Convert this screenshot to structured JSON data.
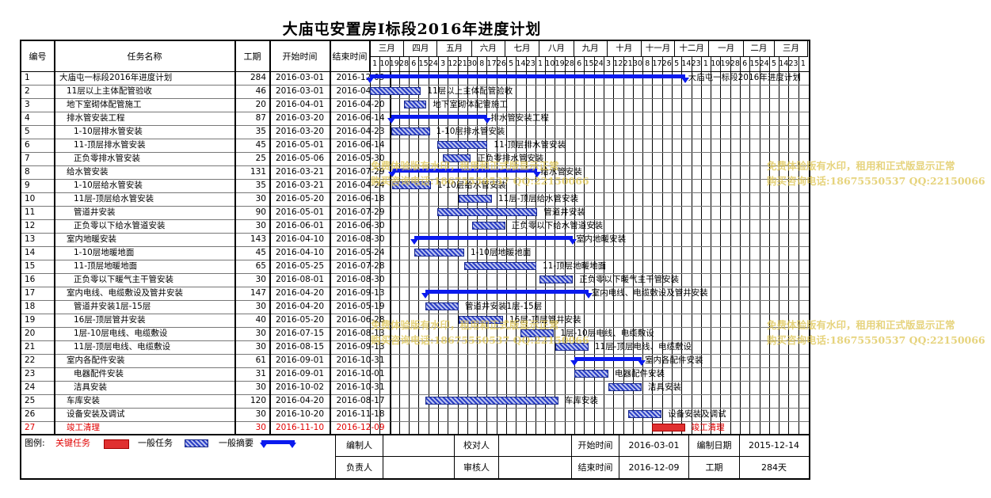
{
  "title": "大庙屯安置房Ⅰ标段2016年进度计划",
  "headers": {
    "id": "编号",
    "name": "任务名称",
    "duration": "工期",
    "start": "开始时间",
    "end": "结束时间"
  },
  "months": [
    "三月",
    "四月",
    "五月",
    "六月",
    "七月",
    "八月",
    "九月",
    "十月",
    "十一月",
    "十二月",
    "一月",
    "二月",
    "三月"
  ],
  "week_days": [
    "1",
    "10",
    "19",
    "28",
    "6",
    "15",
    "24",
    "3",
    "12",
    "21",
    "30",
    "8",
    "17",
    "26",
    "5",
    "14",
    "23",
    "1",
    "10",
    "19",
    "28",
    "6",
    "15",
    "24",
    "3",
    "12",
    "21",
    "30",
    "8",
    "17",
    "26",
    "5",
    "14",
    "23",
    "1",
    "10",
    "19",
    "28",
    "6",
    "15",
    "24",
    "5",
    "14",
    "23",
    "1"
  ],
  "tasks": [
    {
      "id": "1",
      "name": "大庙屯一标段2016年进度计划",
      "duration": "284",
      "start": "2016-03-01",
      "end": "2016-12-09",
      "type": "summary",
      "indent": 1,
      "s": "2016-03-01",
      "e": "2016-12-09"
    },
    {
      "id": "2",
      "name": "11层以上主体配管验收",
      "duration": "46",
      "start": "2016-03-01",
      "end": "2016-04-15",
      "type": "task",
      "indent": 2,
      "s": "2016-03-01",
      "e": "2016-04-15"
    },
    {
      "id": "3",
      "name": "地下室砌体配管施工",
      "duration": "20",
      "start": "2016-04-01",
      "end": "2016-04-20",
      "type": "task",
      "indent": 2,
      "s": "2016-04-01",
      "e": "2016-04-20"
    },
    {
      "id": "4",
      "name": "排水管安装工程",
      "duration": "87",
      "start": "2016-03-20",
      "end": "2016-06-14",
      "type": "summary",
      "indent": 2,
      "s": "2016-03-20",
      "e": "2016-06-14"
    },
    {
      "id": "5",
      "name": "1-10层排水管安装",
      "duration": "35",
      "start": "2016-03-20",
      "end": "2016-04-23",
      "type": "task",
      "indent": 3,
      "s": "2016-03-20",
      "e": "2016-04-23"
    },
    {
      "id": "6",
      "name": "11-顶层排水管安装",
      "duration": "45",
      "start": "2016-05-01",
      "end": "2016-06-14",
      "type": "task",
      "indent": 3,
      "s": "2016-05-01",
      "e": "2016-06-14"
    },
    {
      "id": "7",
      "name": "正负零排水管安装",
      "duration": "25",
      "start": "2016-05-06",
      "end": "2016-05-30",
      "type": "task",
      "indent": 3,
      "s": "2016-05-06",
      "e": "2016-05-30"
    },
    {
      "id": "8",
      "name": "给水管安装",
      "duration": "131",
      "start": "2016-03-21",
      "end": "2016-07-29",
      "type": "summary",
      "indent": 2,
      "s": "2016-03-21",
      "e": "2016-07-29"
    },
    {
      "id": "9",
      "name": "1-10层给水管安装",
      "duration": "35",
      "start": "2016-03-21",
      "end": "2016-04-24",
      "type": "task",
      "indent": 3,
      "s": "2016-03-21",
      "e": "2016-04-24"
    },
    {
      "id": "10",
      "name": "11层-顶层给水管安装",
      "duration": "30",
      "start": "2016-05-20",
      "end": "2016-06-18",
      "type": "task",
      "indent": 3,
      "s": "2016-05-20",
      "e": "2016-06-18"
    },
    {
      "id": "11",
      "name": "管道井安装",
      "duration": "90",
      "start": "2016-05-01",
      "end": "2016-07-29",
      "type": "task",
      "indent": 3,
      "s": "2016-05-01",
      "e": "2016-07-29"
    },
    {
      "id": "12",
      "name": "正负零以下给水管道安装",
      "duration": "30",
      "start": "2016-06-01",
      "end": "2016-06-30",
      "type": "task",
      "indent": 3,
      "s": "2016-06-01",
      "e": "2016-06-30"
    },
    {
      "id": "13",
      "name": "室内地暖安装",
      "duration": "143",
      "start": "2016-04-10",
      "end": "2016-08-30",
      "type": "summary",
      "indent": 2,
      "s": "2016-04-10",
      "e": "2016-08-30"
    },
    {
      "id": "14",
      "name": "1-10层地暖地面",
      "duration": "45",
      "start": "2016-04-10",
      "end": "2016-05-24",
      "type": "task",
      "indent": 3,
      "s": "2016-04-10",
      "e": "2016-05-24"
    },
    {
      "id": "15",
      "name": "11-顶层地暖地面",
      "duration": "65",
      "start": "2016-05-25",
      "end": "2016-07-28",
      "type": "task",
      "indent": 3,
      "s": "2016-05-25",
      "e": "2016-07-28"
    },
    {
      "id": "16",
      "name": "正负零以下暖气主干管安装",
      "duration": "30",
      "start": "2016-08-01",
      "end": "2016-08-30",
      "type": "task",
      "indent": 3,
      "s": "2016-08-01",
      "e": "2016-08-30"
    },
    {
      "id": "17",
      "name": "室内电线、电缆敷设及管井安装",
      "duration": "147",
      "start": "2016-04-20",
      "end": "2016-09-13",
      "type": "summary",
      "indent": 2,
      "s": "2016-04-20",
      "e": "2016-09-13"
    },
    {
      "id": "18",
      "name": "管道井安装1层-15层",
      "duration": "30",
      "start": "2016-04-20",
      "end": "2016-05-19",
      "type": "task",
      "indent": 3,
      "s": "2016-04-20",
      "e": "2016-05-19"
    },
    {
      "id": "19",
      "name": "16层-顶层管井安装",
      "duration": "40",
      "start": "2016-05-20",
      "end": "2016-06-28",
      "type": "task",
      "indent": 3,
      "s": "2016-05-20",
      "e": "2016-06-28"
    },
    {
      "id": "20",
      "name": "1层-10层电线、电缆敷设",
      "duration": "30",
      "start": "2016-07-15",
      "end": "2016-08-13",
      "type": "task",
      "indent": 3,
      "s": "2016-07-15",
      "e": "2016-08-13"
    },
    {
      "id": "21",
      "name": "11层-顶层电线、电缆敷设",
      "duration": "30",
      "start": "2016-08-15",
      "end": "2016-09-13",
      "type": "task",
      "indent": 3,
      "s": "2016-08-15",
      "e": "2016-09-13"
    },
    {
      "id": "22",
      "name": "室内各配件安装",
      "duration": "61",
      "start": "2016-09-01",
      "end": "2016-10-31",
      "type": "summary",
      "indent": 2,
      "s": "2016-09-01",
      "e": "2016-10-31"
    },
    {
      "id": "23",
      "name": "电器配件安装",
      "duration": "31",
      "start": "2016-09-01",
      "end": "2016-10-01",
      "type": "task",
      "indent": 3,
      "s": "2016-09-01",
      "e": "2016-10-01"
    },
    {
      "id": "24",
      "name": "洁具安装",
      "duration": "30",
      "start": "2016-10-02",
      "end": "2016-10-31",
      "type": "task",
      "indent": 3,
      "s": "2016-10-02",
      "e": "2016-10-31"
    },
    {
      "id": "25",
      "name": "车库安装",
      "duration": "120",
      "start": "2016-04-20",
      "end": "2016-08-17",
      "type": "task",
      "indent": 2,
      "s": "2016-04-20",
      "e": "2016-08-17"
    },
    {
      "id": "26",
      "name": "设备安装及调试",
      "duration": "30",
      "start": "2016-10-20",
      "end": "2016-11-18",
      "type": "task",
      "indent": 2,
      "s": "2016-10-20",
      "e": "2016-11-18"
    },
    {
      "id": "27",
      "name": "竣工清理",
      "duration": "30",
      "start": "2016-11-10",
      "end": "2016-12-09",
      "type": "critical",
      "indent": 2,
      "s": "2016-11-10",
      "e": "2016-12-09"
    }
  ],
  "legend": {
    "label": "图例:",
    "critical": "关键任务",
    "task": "一般任务",
    "summary": "一般摘要"
  },
  "footer": {
    "editor_label": "编制人",
    "checker_label": "校对人",
    "start_label": "开始时间",
    "start_value": "2016-03-01",
    "date_label": "编制日期",
    "date_value": "2015-12-14",
    "owner_label": "负责人",
    "auditor_label": "审核人",
    "end_label": "结束时间",
    "end_value": "2016-12-09",
    "duration_label": "工期",
    "duration_value": "284天"
  },
  "watermark": {
    "line1": "免费体验版有水印，租用和正式版显示正常",
    "line2": "购买咨询电话:18675550537 QQ:22150066"
  },
  "colors": {
    "task": "#2b3fc6",
    "summary": "#0a1aee",
    "critical": "#e03030",
    "watermark": "#dec450"
  }
}
